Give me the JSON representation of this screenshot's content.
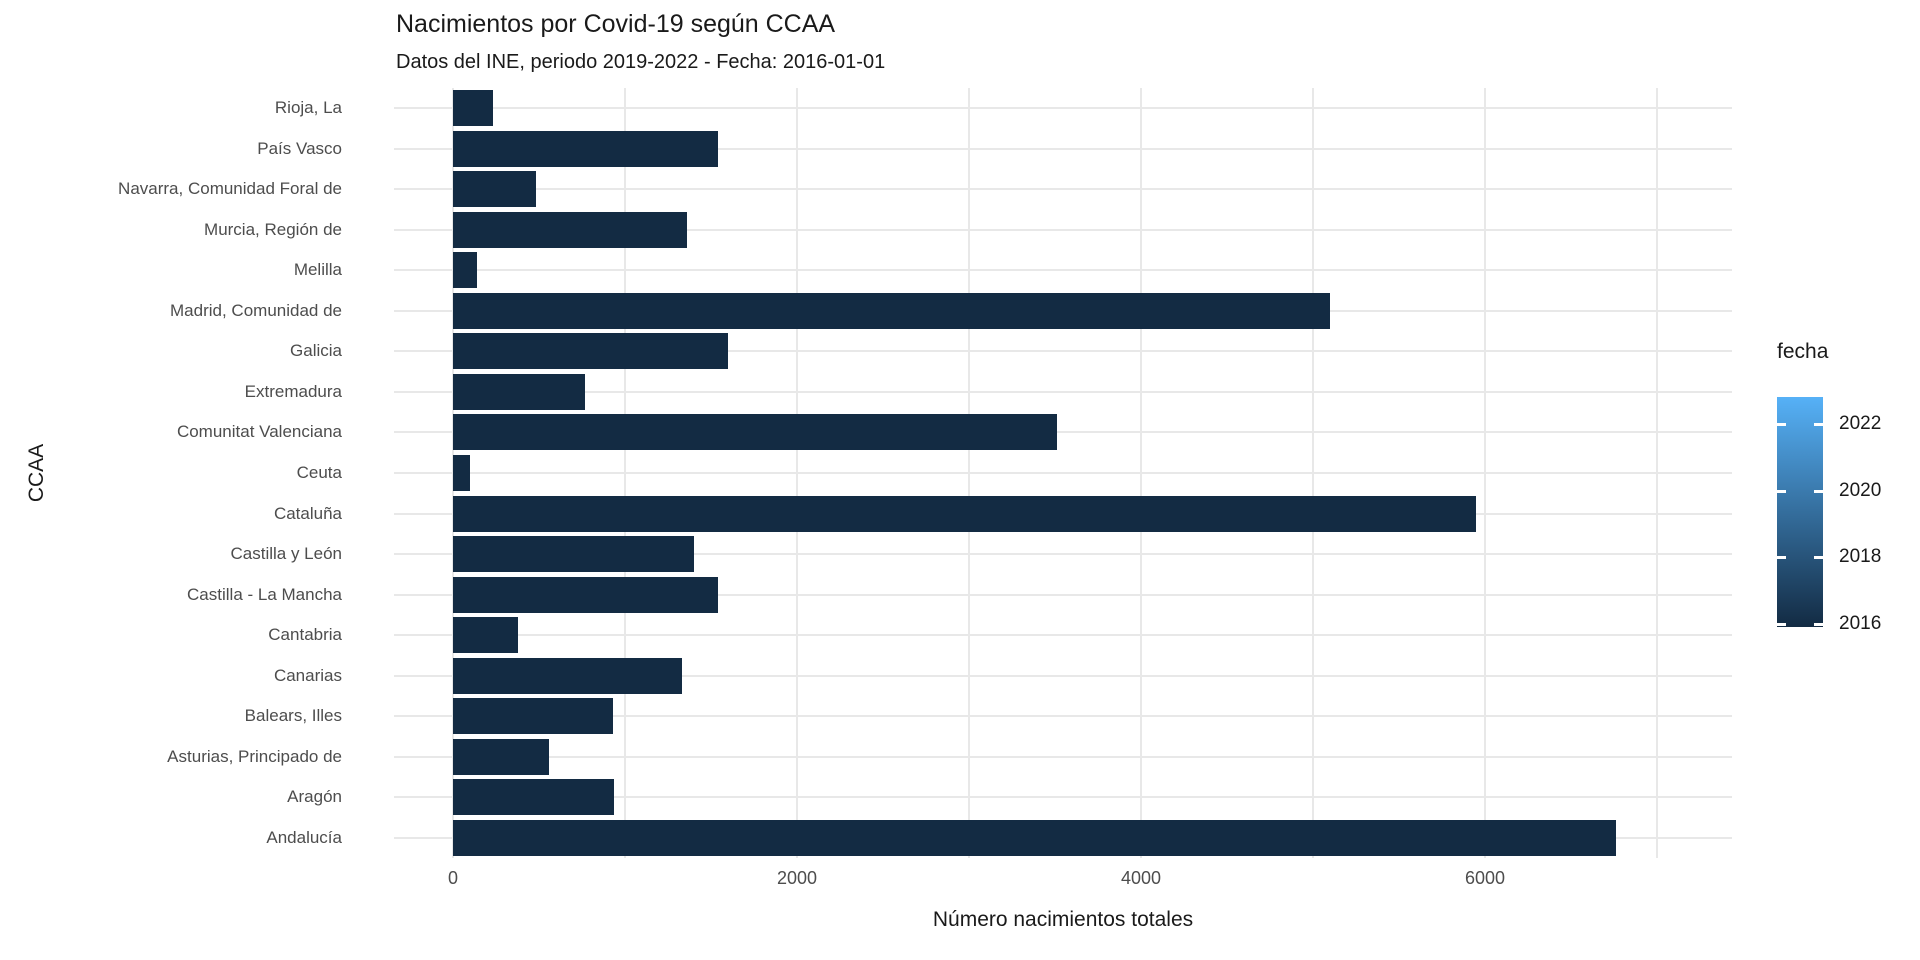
{
  "title": "Nacimientos por Covid-19 según CCAA",
  "subtitle": "Datos del INE, periodo 2019-2022 - Fecha: 2016-01-01",
  "chart_data": {
    "type": "bar",
    "orientation": "horizontal",
    "title": "Nacimientos por Covid-19 según CCAA",
    "subtitle": "Datos del INE, periodo 2019-2022 - Fecha: 2016-01-01",
    "xlabel": "Número nacimientos totales",
    "ylabel": "CCAA",
    "xlim": [
      0,
      7000
    ],
    "x_ticks": [
      0,
      2000,
      4000,
      6000
    ],
    "x_minor_ticks": [
      0,
      1000,
      2000,
      3000,
      4000,
      5000,
      6000,
      7000
    ],
    "grid": true,
    "background": "#ffffff",
    "gridline_color": "#e8e8e8",
    "bar_color": "#132b43",
    "categories": [
      "Rioja, La",
      "País Vasco",
      "Navarra, Comunidad Foral de",
      "Murcia, Región de",
      "Melilla",
      "Madrid, Comunidad de",
      "Galicia",
      "Extremadura",
      "Comunitat Valenciana",
      "Ceuta",
      "Cataluña",
      "Castilla y León",
      "Castilla - La Mancha",
      "Cantabria",
      "Canarias",
      "Balears, Illes",
      "Asturias, Principado de",
      "Aragón",
      "Andalucía"
    ],
    "values": [
      230,
      1540,
      480,
      1360,
      140,
      5100,
      1600,
      765,
      3510,
      100,
      5950,
      1400,
      1540,
      380,
      1330,
      930,
      560,
      935,
      6760
    ],
    "legend": {
      "title": "fecha",
      "type": "gradient",
      "position": "right",
      "low_value": 2016,
      "high_value": 2022,
      "low_color": "#132b43",
      "high_color": "#56b1f7",
      "tick_labels": [
        "2022",
        "2020",
        "2018",
        "2016"
      ]
    }
  }
}
